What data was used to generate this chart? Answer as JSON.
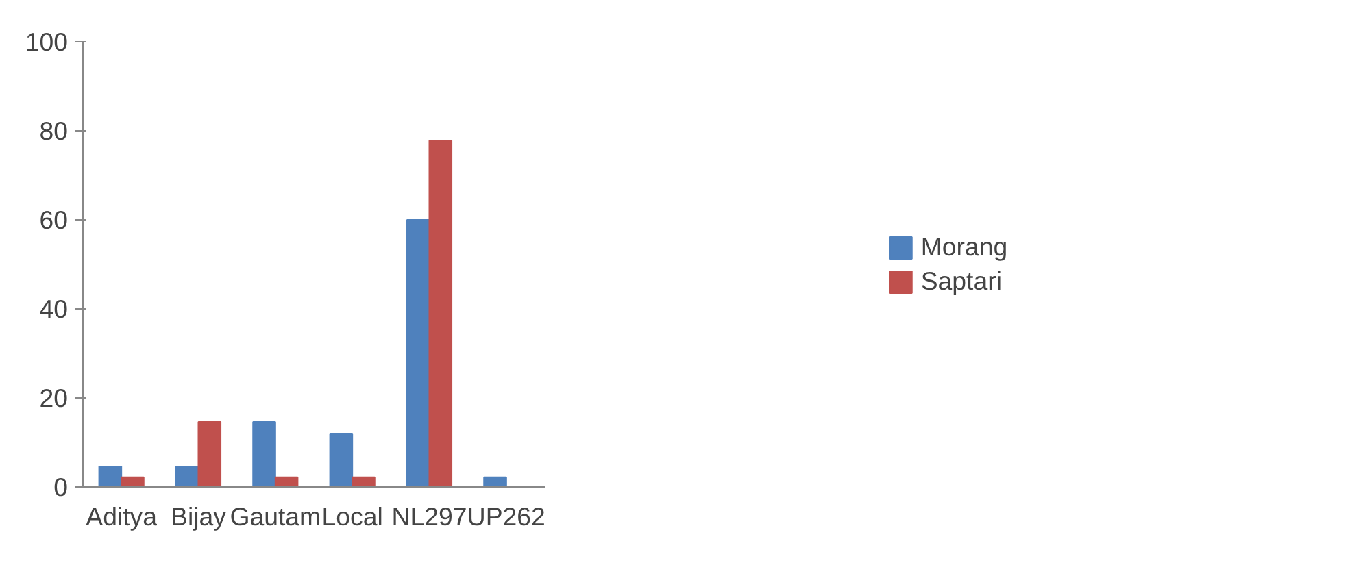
{
  "chart_data": {
    "type": "bar",
    "categories": [
      "Aditya",
      "Bijay",
      "Gautam",
      "Local",
      "NL297",
      "UP262"
    ],
    "series": [
      {
        "name": "Morang",
        "color": "#4f81bd",
        "values": [
          4.6,
          4.6,
          14.6,
          12.0,
          60.0,
          2.2
        ]
      },
      {
        "name": "Saptari",
        "color": "#c0504d",
        "values": [
          2.2,
          14.6,
          2.2,
          2.2,
          77.8,
          0
        ]
      }
    ],
    "ylim": [
      0,
      100
    ],
    "yticks": [
      0,
      20,
      40,
      60,
      80,
      100
    ],
    "grid": false,
    "legend": "right"
  }
}
